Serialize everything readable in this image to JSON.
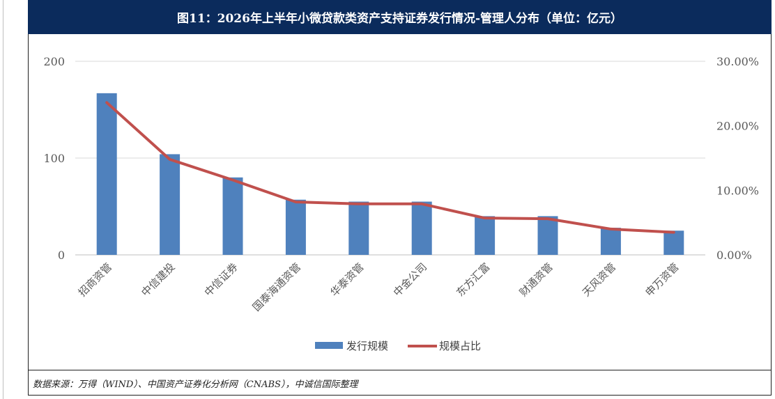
{
  "title": "图11：2026年上半年小微贷款类资产支持证券发行情况-管理人分布（单位：亿元）",
  "source_note": "数据来源：万得（WIND）、中国资产证券化分析网（CNABS），中诚信国际整理",
  "colors": {
    "title_bg": "#0b2b5c",
    "bar": "#4f81bd",
    "line": "#c0504d"
  },
  "chart_data": {
    "type": "bar",
    "categories": [
      "招商资管",
      "中信建投",
      "中信证券",
      "国泰海通资管",
      "华泰资管",
      "中金公司",
      "东方汇富",
      "财通资管",
      "天风资管",
      "申万资管"
    ],
    "series": [
      {
        "name": "发行规模",
        "type": "bar",
        "axis": "left",
        "values": [
          167,
          104,
          80,
          57,
          55,
          55,
          40,
          40,
          28,
          25
        ]
      },
      {
        "name": "规模占比",
        "type": "line",
        "axis": "right",
        "values": [
          23.6,
          14.8,
          11.6,
          8.2,
          7.9,
          7.9,
          5.7,
          5.6,
          4.0,
          3.5
        ]
      }
    ],
    "y_left": {
      "ylim": [
        0,
        200
      ],
      "ticks": [
        "0",
        "100",
        "200"
      ],
      "tick_values": [
        0,
        100,
        200
      ]
    },
    "y_right": {
      "ylim": [
        0,
        30
      ],
      "ticks": [
        "0.00%",
        "10.00%",
        "20.00%",
        "30.00%"
      ],
      "tick_values": [
        0,
        10,
        20,
        30
      ]
    },
    "legend_position": "bottom-center",
    "grid": true
  }
}
